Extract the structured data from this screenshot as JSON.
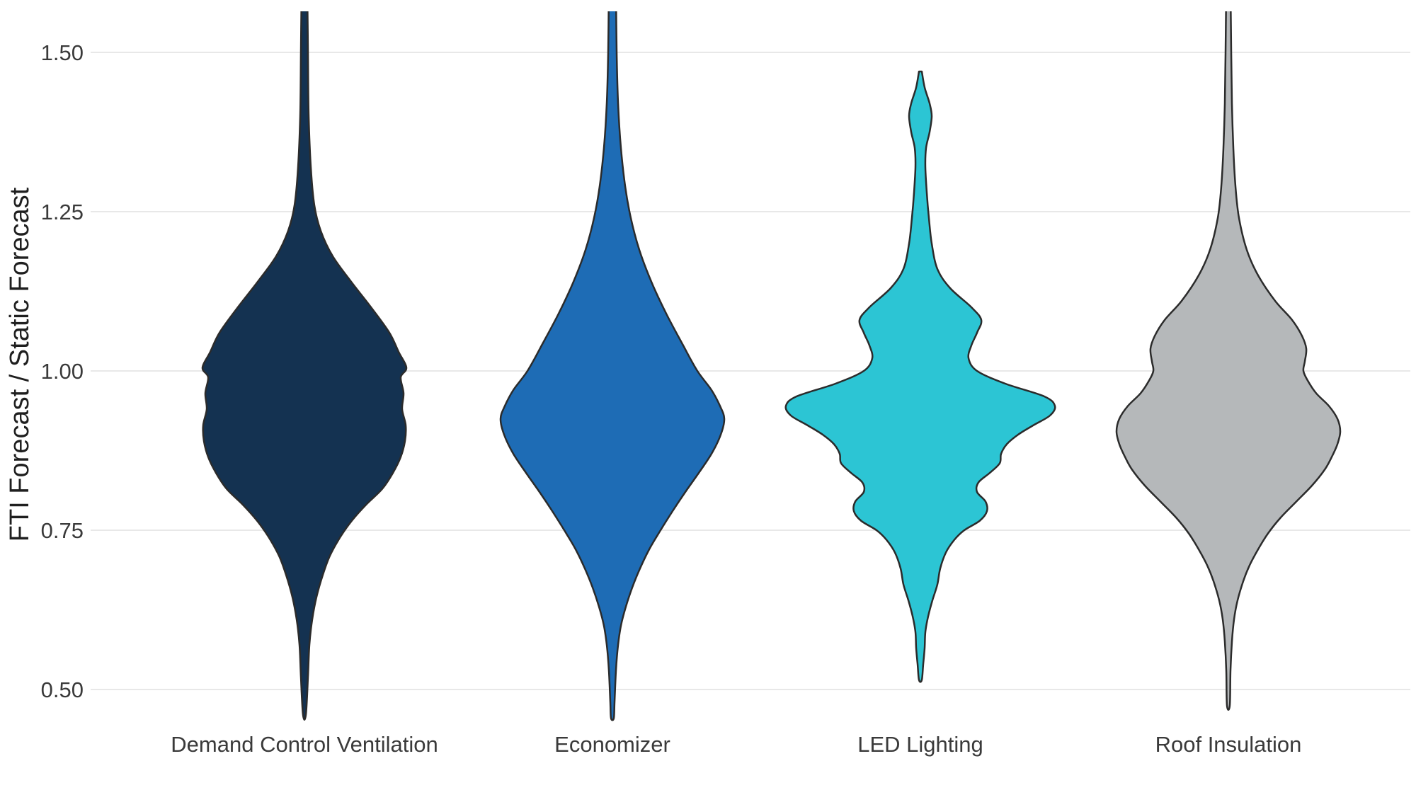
{
  "chart_data": {
    "type": "violin",
    "title": "",
    "xlabel": "",
    "ylabel": "FTI Forecast / Static Forecast",
    "categories": [
      "Demand Control Ventilation",
      "Economizer",
      "LED Lighting",
      "Roof Insulation"
    ],
    "yticks": [
      1.5,
      1.25,
      1.0,
      0.75,
      0.5
    ],
    "ytick_labels": [
      "1.50",
      "1.25",
      "1.00",
      "0.75",
      "0.50"
    ],
    "ylim": [
      0.44,
      1.56
    ],
    "grid": "horizontal-major",
    "legend": "none",
    "profile_format": [
      "ratio_value",
      "half_width_px"
    ],
    "series": [
      {
        "name": "Demand Control Ventilation",
        "fill": "#143251",
        "stroke": "#2b2b2b",
        "profile": [
          [
            1.6,
            4
          ],
          [
            1.5,
            5
          ],
          [
            1.4,
            6
          ],
          [
            1.32,
            9
          ],
          [
            1.26,
            14
          ],
          [
            1.22,
            23
          ],
          [
            1.18,
            40
          ],
          [
            1.14,
            66
          ],
          [
            1.1,
            94
          ],
          [
            1.06,
            120
          ],
          [
            1.03,
            133
          ],
          [
            1.005,
            144
          ],
          [
            0.99,
            136
          ],
          [
            0.965,
            140
          ],
          [
            0.94,
            138
          ],
          [
            0.915,
            143
          ],
          [
            0.89,
            142
          ],
          [
            0.865,
            136
          ],
          [
            0.84,
            125
          ],
          [
            0.815,
            110
          ],
          [
            0.79,
            87
          ],
          [
            0.765,
            67
          ],
          [
            0.74,
            51
          ],
          [
            0.71,
            36
          ],
          [
            0.68,
            26
          ],
          [
            0.645,
            17
          ],
          [
            0.61,
            11
          ],
          [
            0.57,
            7
          ],
          [
            0.52,
            5
          ],
          [
            0.46,
            2
          ]
        ]
      },
      {
        "name": "Economizer",
        "fill": "#1e6cb5",
        "stroke": "#2b2b2b",
        "profile": [
          [
            1.6,
            5
          ],
          [
            1.5,
            6
          ],
          [
            1.42,
            8
          ],
          [
            1.35,
            12
          ],
          [
            1.29,
            18
          ],
          [
            1.24,
            26
          ],
          [
            1.19,
            38
          ],
          [
            1.14,
            55
          ],
          [
            1.09,
            76
          ],
          [
            1.04,
            100
          ],
          [
            1.0,
            120
          ],
          [
            0.97,
            140
          ],
          [
            0.945,
            152
          ],
          [
            0.925,
            158
          ],
          [
            0.9,
            153
          ],
          [
            0.87,
            140
          ],
          [
            0.84,
            122
          ],
          [
            0.81,
            103
          ],
          [
            0.78,
            85
          ],
          [
            0.75,
            68
          ],
          [
            0.72,
            52
          ],
          [
            0.69,
            39
          ],
          [
            0.66,
            28
          ],
          [
            0.63,
            19
          ],
          [
            0.6,
            12
          ],
          [
            0.57,
            8
          ],
          [
            0.53,
            5
          ],
          [
            0.48,
            3
          ],
          [
            0.455,
            2
          ]
        ]
      },
      {
        "name": "LED Lighting",
        "fill": "#2cc5d4",
        "stroke": "#2b2b2b",
        "profile": [
          [
            1.47,
            2
          ],
          [
            1.445,
            6
          ],
          [
            1.42,
            13
          ],
          [
            1.4,
            16
          ],
          [
            1.375,
            13
          ],
          [
            1.35,
            8
          ],
          [
            1.32,
            7
          ],
          [
            1.28,
            9
          ],
          [
            1.24,
            12
          ],
          [
            1.2,
            16
          ],
          [
            1.16,
            24
          ],
          [
            1.13,
            42
          ],
          [
            1.1,
            72
          ],
          [
            1.08,
            86
          ],
          [
            1.06,
            80
          ],
          [
            1.04,
            72
          ],
          [
            1.02,
            68
          ],
          [
            1.0,
            80
          ],
          [
            0.98,
            120
          ],
          [
            0.96,
            175
          ],
          [
            0.945,
            190
          ],
          [
            0.93,
            183
          ],
          [
            0.915,
            160
          ],
          [
            0.9,
            138
          ],
          [
            0.885,
            122
          ],
          [
            0.87,
            114
          ],
          [
            0.855,
            112
          ],
          [
            0.84,
            98
          ],
          [
            0.825,
            82
          ],
          [
            0.81,
            80
          ],
          [
            0.795,
            92
          ],
          [
            0.78,
            94
          ],
          [
            0.765,
            84
          ],
          [
            0.75,
            62
          ],
          [
            0.735,
            48
          ],
          [
            0.715,
            36
          ],
          [
            0.69,
            28
          ],
          [
            0.665,
            24
          ],
          [
            0.64,
            17
          ],
          [
            0.615,
            11
          ],
          [
            0.59,
            7
          ],
          [
            0.565,
            6
          ],
          [
            0.54,
            4
          ],
          [
            0.515,
            2
          ]
        ]
      },
      {
        "name": "Roof Insulation",
        "fill": "#b5b8ba",
        "stroke": "#2b2b2b",
        "profile": [
          [
            1.6,
            3
          ],
          [
            1.5,
            4
          ],
          [
            1.42,
            5
          ],
          [
            1.35,
            7
          ],
          [
            1.29,
            10
          ],
          [
            1.24,
            15
          ],
          [
            1.19,
            26
          ],
          [
            1.15,
            42
          ],
          [
            1.11,
            66
          ],
          [
            1.08,
            90
          ],
          [
            1.055,
            104
          ],
          [
            1.035,
            110
          ],
          [
            1.015,
            108
          ],
          [
            1.0,
            106
          ],
          [
            0.985,
            112
          ],
          [
            0.965,
            124
          ],
          [
            0.945,
            142
          ],
          [
            0.925,
            154
          ],
          [
            0.905,
            158
          ],
          [
            0.885,
            154
          ],
          [
            0.865,
            146
          ],
          [
            0.845,
            136
          ],
          [
            0.82,
            118
          ],
          [
            0.795,
            96
          ],
          [
            0.77,
            74
          ],
          [
            0.745,
            56
          ],
          [
            0.72,
            42
          ],
          [
            0.695,
            30
          ],
          [
            0.67,
            21
          ],
          [
            0.64,
            13
          ],
          [
            0.61,
            8
          ],
          [
            0.575,
            5
          ],
          [
            0.53,
            3
          ],
          [
            0.475,
            2
          ]
        ]
      }
    ]
  }
}
